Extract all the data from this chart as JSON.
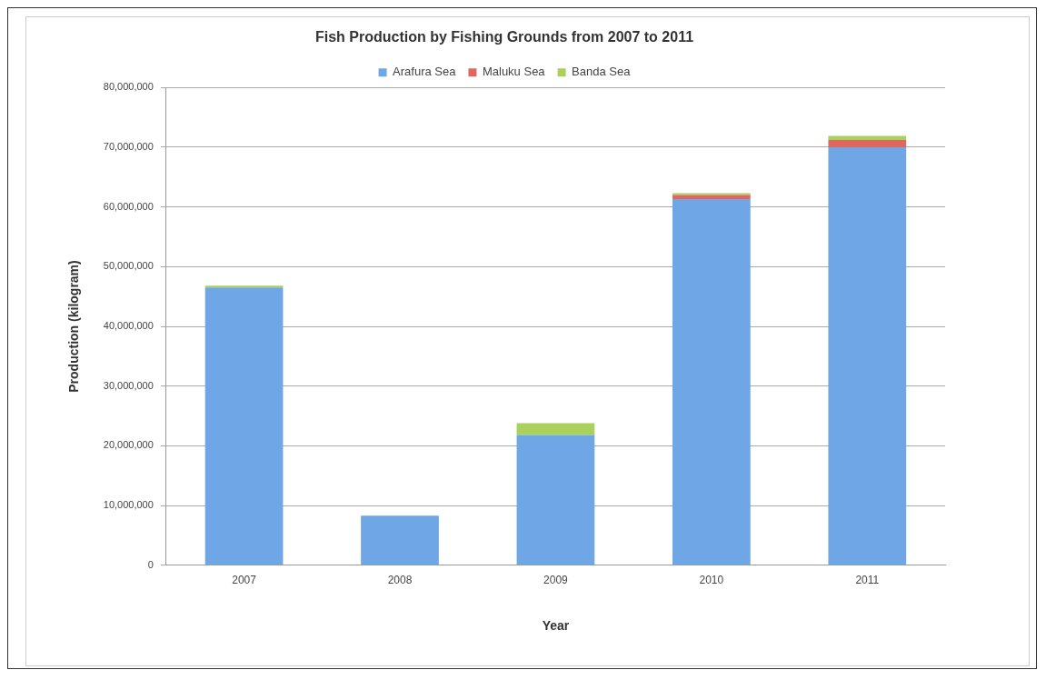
{
  "chart_data": {
    "type": "bar",
    "title": "Fish Production by Fishing Grounds from 2007 to 2011",
    "xlabel": "Year",
    "ylabel": "Production (kilogram)",
    "categories": [
      "2007",
      "2008",
      "2009",
      "2010",
      "2011"
    ],
    "stacked": true,
    "series": [
      {
        "name": "Arafura Sea",
        "color": "#6ea6e6",
        "values": [
          46500000,
          8300000,
          21800000,
          61300000,
          70000000
        ]
      },
      {
        "name": "Maluku Sea",
        "color": "#e0675f",
        "values": [
          0,
          0,
          0,
          700000,
          1200000
        ]
      },
      {
        "name": "Banda Sea",
        "color": "#a9d15c",
        "values": [
          300000,
          0,
          2000000,
          300000,
          700000
        ]
      }
    ],
    "ylim": [
      0,
      80000000
    ],
    "yticks": [
      0,
      {
        "value": 10000000,
        "label": "10,000,000"
      },
      {
        "value": 20000000,
        "label": "20,000,000"
      },
      {
        "value": 30000000,
        "label": "30,000,000"
      },
      {
        "value": 40000000,
        "label": "40,000,000"
      },
      {
        "value": 50000000,
        "label": "50,000,000"
      },
      {
        "value": 60000000,
        "label": "60,000,000"
      },
      {
        "value": 70000000,
        "label": "70,000,000"
      },
      {
        "value": 80000000,
        "label": "80,000,000"
      }
    ],
    "grid": "y",
    "legend": "top"
  }
}
